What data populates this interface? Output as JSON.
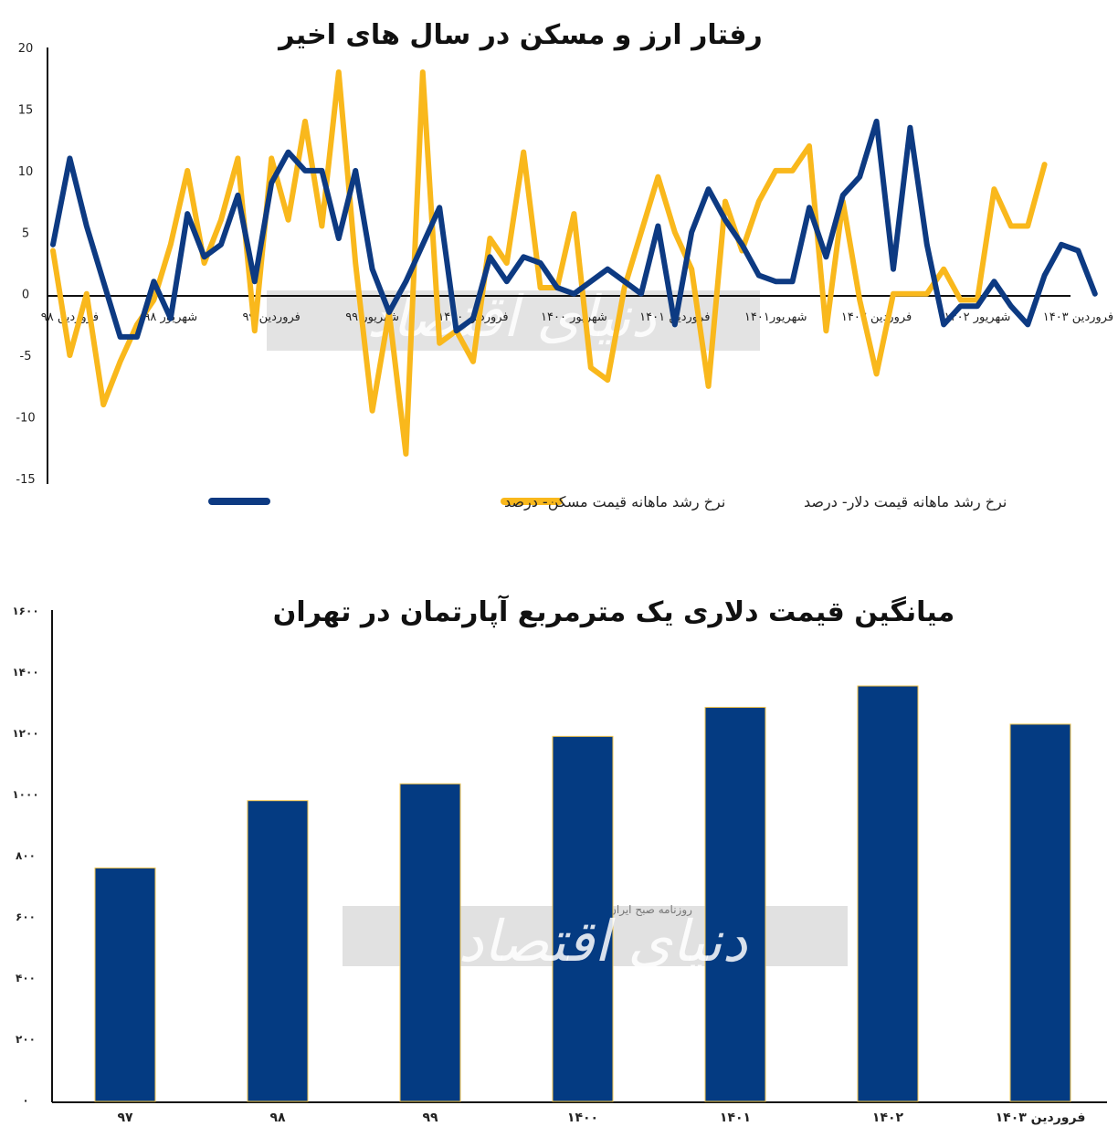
{
  "chart_data": [
    {
      "type": "line",
      "title": "رفتار ارز و مسکن در سال های اخیر",
      "ylim": [
        -15,
        20
      ],
      "yticks": [
        "20",
        "15",
        "10",
        "5",
        "0",
        "-5",
        "-10",
        "-15"
      ],
      "x_labels": [
        {
          "i": 1,
          "label": "فروردین ۹۸"
        },
        {
          "i": 7,
          "label": "شهریور ۹۸"
        },
        {
          "i": 13,
          "label": "فروردین ۹۹"
        },
        {
          "i": 19,
          "label": "شهریور ۹۹"
        },
        {
          "i": 25,
          "label": "فروردین ۱۴۰۰"
        },
        {
          "i": 31,
          "label": "شهریور ۱۴۰۰"
        },
        {
          "i": 37,
          "label": "فروردین ۱۴۰۱"
        },
        {
          "i": 43,
          "label": "شهریور۱۴۰۱"
        },
        {
          "i": 49,
          "label": "فروردین ۱۴۰۲"
        },
        {
          "i": 55,
          "label": "شهریور ۱۴۰۲"
        },
        {
          "i": 61,
          "label": "فروردین ۱۴۰۳"
        }
      ],
      "grid": false,
      "legend_position": "bottom",
      "series": [
        {
          "name": "نرخ رشد ماهانه قیمت مسکن- درصد",
          "color": "#0d3a82",
          "values": [
            4,
            11,
            5.5,
            1,
            -3.5,
            -3.5,
            1,
            -2,
            6.5,
            3,
            4,
            8,
            1,
            9,
            11.5,
            10,
            10,
            4.5,
            10,
            2,
            -1.5,
            1,
            4,
            7,
            -3,
            -2,
            3,
            1,
            3,
            2.5,
            0.5,
            0,
            1,
            2,
            1,
            0,
            5.5,
            -2.5,
            5,
            8.5,
            6,
            4,
            1.5,
            1,
            1,
            7,
            3,
            8,
            9.5,
            14,
            2,
            13.5,
            4,
            -2.5,
            -1,
            -1,
            1,
            -1,
            -2.5,
            1.5,
            4,
            3.5,
            0
          ]
        },
        {
          "name": "نرخ رشد ماهانه قیمت دلار- درصد",
          "color": "#f9b81c",
          "values": [
            3.5,
            -5,
            0,
            -9,
            -5.5,
            -2.5,
            -0.5,
            4,
            10,
            2.5,
            6,
            11,
            -3,
            11,
            6,
            14,
            5.5,
            18,
            2.5,
            -9.5,
            -1.5,
            -13,
            18,
            -4,
            -3,
            -5.5,
            4.5,
            2.5,
            11.5,
            0.5,
            0.5,
            6.5,
            -6,
            -7,
            0.5,
            5,
            9.5,
            5,
            2,
            -7.5,
            7.5,
            3.5,
            7.5,
            10,
            10,
            12,
            -3,
            7.5,
            -0.5,
            -6.5,
            0,
            0,
            0,
            2,
            -0.5,
            -0.5,
            8.5,
            5.5,
            5.5,
            10.5
          ]
        }
      ]
    },
    {
      "type": "bar",
      "title": "میانگین قیمت دلاری یک مترمربع آپارتمان در تهران",
      "categories": [
        "۹۷",
        "۹۸",
        "۹۹",
        "۱۴۰۰",
        "۱۴۰۱",
        "۱۴۰۲",
        "فروردین ۱۴۰۳"
      ],
      "values": [
        760,
        980,
        1035,
        1190,
        1285,
        1355,
        1230
      ],
      "ylim": [
        0,
        1600
      ],
      "yticks": [
        "۱۶۰۰",
        "۱۴۰۰",
        "۱۲۰۰",
        "۱۰۰۰",
        "۸۰۰",
        "۶۰۰",
        "۴۰۰",
        "۲۰۰",
        "۰"
      ],
      "bar_color": "#043b82",
      "bar_edge_color": "#f4c64c",
      "grid": false
    }
  ],
  "watermark": {
    "text": "دنیای اقتصاد",
    "subtext": "روزنامه صبح ایران"
  }
}
